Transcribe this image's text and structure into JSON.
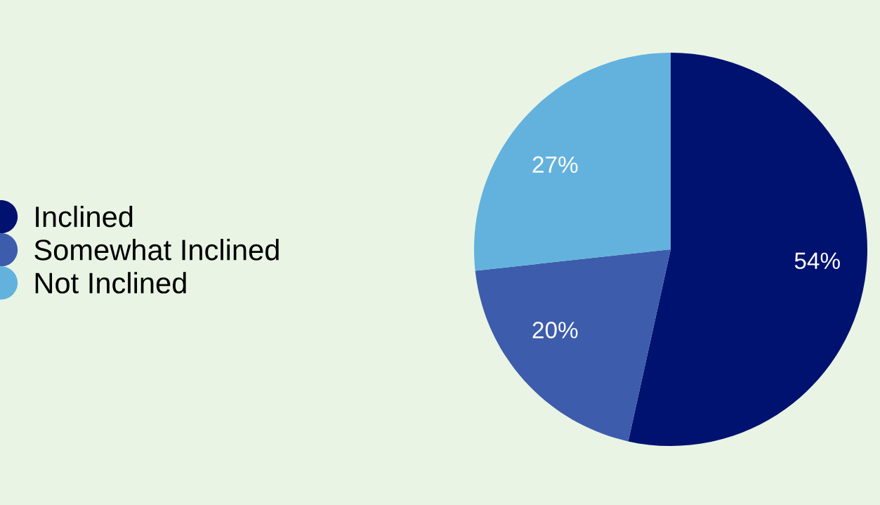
{
  "chart_data": {
    "type": "pie",
    "categories": [
      "Inclined",
      "Somewhat Inclined",
      "Not Inclined"
    ],
    "values": [
      54,
      20,
      27
    ],
    "value_labels": [
      "54%",
      "20%",
      "27%"
    ],
    "colors": [
      "#001270",
      "#3d5cac",
      "#63b2de"
    ],
    "legend": "left"
  }
}
